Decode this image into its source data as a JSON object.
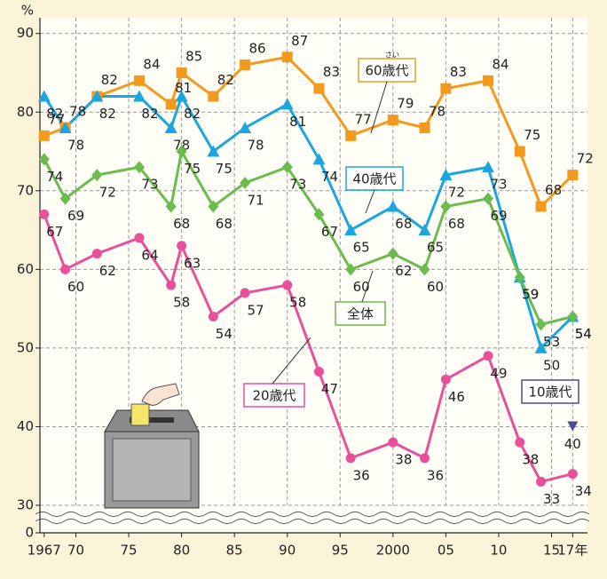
{
  "chart_data": {
    "type": "line",
    "y_unit": "%",
    "x": [
      1967,
      1969,
      1972,
      1976,
      1979,
      1980,
      1983,
      1986,
      1990,
      1993,
      1996,
      2000,
      2003,
      2005,
      2009,
      2012,
      2014,
      2017
    ],
    "series": [
      {
        "name": "60歳代",
        "name_ruby": "さい",
        "color": "#f39a1e",
        "marker": "square",
        "values": [
          77,
          78,
          82,
          84,
          81,
          85,
          82,
          86,
          87,
          83,
          77,
          79,
          78,
          83,
          84,
          75,
          68,
          72
        ]
      },
      {
        "name": "40歳代",
        "color": "#1ba6df",
        "marker": "triangle",
        "values": [
          82,
          78,
          82,
          82,
          78,
          82,
          75,
          78,
          81,
          74,
          65,
          68,
          65,
          72,
          73,
          59,
          50,
          54
        ]
      },
      {
        "name": "全体",
        "color": "#6cbb4f",
        "marker": "diamond",
        "values": [
          74,
          69,
          72,
          73,
          68,
          75,
          68,
          71,
          73,
          67,
          60,
          62,
          60,
          68,
          69,
          59,
          53,
          54
        ]
      },
      {
        "name": "20歳代",
        "color": "#e8509b",
        "marker": "circle",
        "values": [
          67,
          60,
          62,
          64,
          58,
          63,
          54,
          57,
          58,
          47,
          36,
          38,
          36,
          46,
          49,
          38,
          33,
          34
        ]
      },
      {
        "name": "10歳代",
        "color": "#4b4b95",
        "marker": "triangle-down",
        "values": [
          null,
          null,
          null,
          null,
          null,
          null,
          null,
          null,
          null,
          null,
          null,
          null,
          null,
          null,
          null,
          null,
          null,
          40
        ]
      }
    ],
    "xlim": [
      1966.6,
      2018.4
    ],
    "xticks": [
      {
        "value": 1967,
        "label": "1967"
      },
      {
        "value": 1970,
        "label": "70"
      },
      {
        "value": 1975,
        "label": "75"
      },
      {
        "value": 1980,
        "label": "80"
      },
      {
        "value": 1985,
        "label": "85"
      },
      {
        "value": 1990,
        "label": "90"
      },
      {
        "value": 1995,
        "label": "95"
      },
      {
        "value": 2000,
        "label": "2000"
      },
      {
        "value": 2005,
        "label": "05"
      },
      {
        "value": 2010,
        "label": "10"
      },
      {
        "value": 2015,
        "label": "15"
      },
      {
        "value": 2017,
        "label": "17年"
      }
    ],
    "ylim": [
      0,
      92
    ],
    "yticks": [
      0,
      30,
      40,
      50,
      60,
      70,
      80,
      90
    ],
    "broken_axis": true,
    "grid": true
  }
}
